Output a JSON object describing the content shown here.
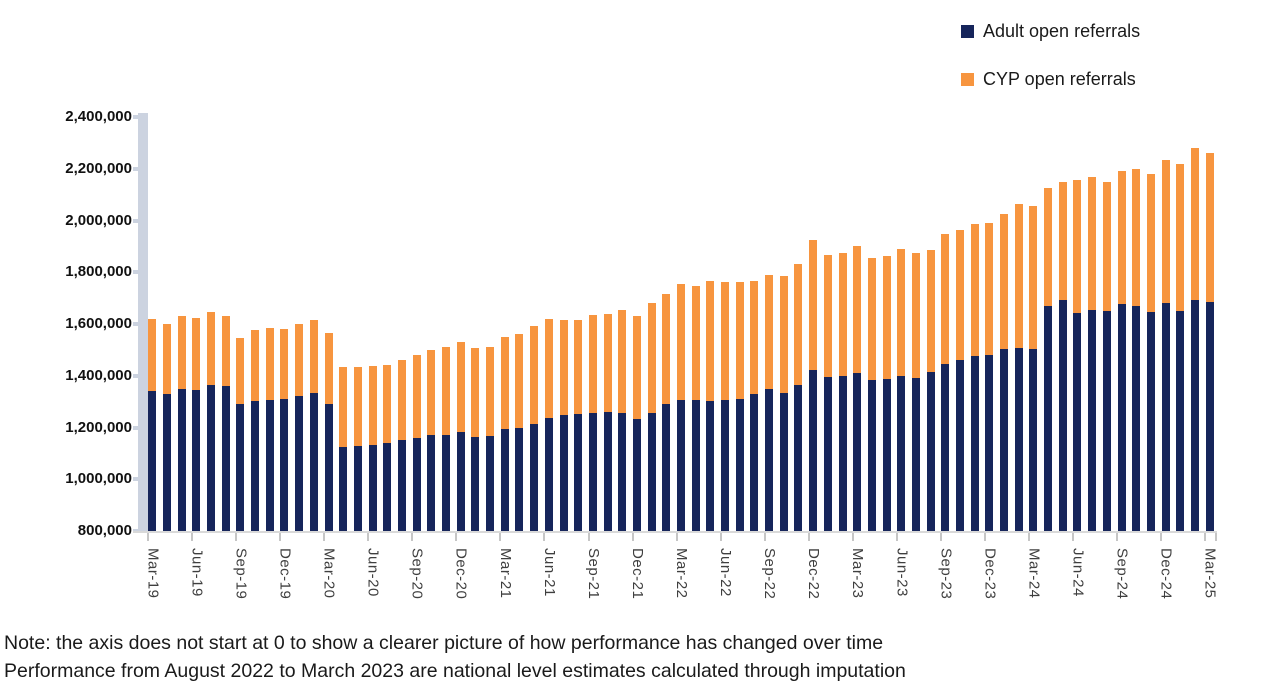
{
  "legend": [
    {
      "label": "Adult open referrals",
      "color": "#16255b"
    },
    {
      "label": "CYP open referrals",
      "color": "#f7953f"
    }
  ],
  "note": {
    "line1": "Note: the axis does not start at 0 to show a clearer picture of how performance has changed over time",
    "line2": "Performance from August 2022 to March 2023 are national level estimates calculated through imputation"
  },
  "chart_data": {
    "type": "bar",
    "stacked": true,
    "title": "",
    "xlabel": "",
    "ylabel": "",
    "grid": false,
    "legend_position": "top-right",
    "ylim": [
      800000,
      2400000
    ],
    "y_tick_step": 200000,
    "y_tick_labels": [
      "2,400,000",
      "2,200,000",
      "2,000,000",
      "1,800,000",
      "1,600,000",
      "1,400,000",
      "1,200,000",
      "1,000,000",
      "800,000"
    ],
    "x_label_every": 3,
    "x_tick_labels": [
      "Mar-19",
      "Jun-19",
      "Sep-19",
      "Dec-19",
      "Mar-20",
      "Jun-20",
      "Sep-20",
      "Dec-20",
      "Mar-21",
      "Jun-21",
      "Sep-21",
      "Dec-21",
      "Mar-22",
      "Jun-22",
      "Sep-22",
      "Dec-22",
      "Mar-23",
      "Jun-23",
      "Sep-23",
      "Dec-23",
      "Mar-24",
      "Jun-24",
      "Sep-24",
      "Dec-24",
      "Mar-25"
    ],
    "categories": [
      "Mar-19",
      "Apr-19",
      "May-19",
      "Jun-19",
      "Jul-19",
      "Aug-19",
      "Sep-19",
      "Oct-19",
      "Nov-19",
      "Dec-19",
      "Jan-20",
      "Feb-20",
      "Mar-20",
      "Apr-20",
      "May-20",
      "Jun-20",
      "Jul-20",
      "Aug-20",
      "Sep-20",
      "Oct-20",
      "Nov-20",
      "Dec-20",
      "Jan-21",
      "Feb-21",
      "Mar-21",
      "Apr-21",
      "May-21",
      "Jun-21",
      "Jul-21",
      "Aug-21",
      "Sep-21",
      "Oct-21",
      "Nov-21",
      "Dec-21",
      "Jan-22",
      "Feb-22",
      "Mar-22",
      "Apr-22",
      "May-22",
      "Jun-22",
      "Jul-22",
      "Aug-22",
      "Sep-22",
      "Oct-22",
      "Nov-22",
      "Dec-22",
      "Jan-23",
      "Feb-23",
      "Mar-23",
      "Apr-23",
      "May-23",
      "Jun-23",
      "Jul-23",
      "Aug-23",
      "Sep-23",
      "Oct-23",
      "Nov-23",
      "Dec-23",
      "Jan-24",
      "Feb-24",
      "Mar-24",
      "Apr-24",
      "May-24",
      "Jun-24",
      "Jul-24",
      "Aug-24",
      "Sep-24",
      "Oct-24",
      "Nov-24",
      "Dec-24",
      "Jan-25",
      "Feb-25",
      "Mar-25"
    ],
    "series": [
      {
        "name": "Adult open referrals",
        "color": "#16255b",
        "values": [
          1340000,
          1330000,
          1348000,
          1345000,
          1365000,
          1362000,
          1290000,
          1304000,
          1308000,
          1310000,
          1323000,
          1333000,
          1290000,
          1126000,
          1128000,
          1132000,
          1142000,
          1152000,
          1161000,
          1171000,
          1172000,
          1182000,
          1163000,
          1167000,
          1193000,
          1200000,
          1214000,
          1236000,
          1247000,
          1252000,
          1256000,
          1261000,
          1258000,
          1234000,
          1258000,
          1291000,
          1305000,
          1306000,
          1301000,
          1307000,
          1311000,
          1330000,
          1349000,
          1335000,
          1363000,
          1424000,
          1395000,
          1399000,
          1411000,
          1384000,
          1389000,
          1399000,
          1391000,
          1414000,
          1446000,
          1462000,
          1476000,
          1480000,
          1504000,
          1508000,
          1503000,
          1670000,
          1694000,
          1641000,
          1654000,
          1651000,
          1676000,
          1670000,
          1648000,
          1682000,
          1652000,
          1693000,
          1686000
        ]
      },
      {
        "name": "CYP open referrals",
        "color": "#f7953f",
        "values": [
          280000,
          270000,
          282000,
          280000,
          280000,
          268000,
          255000,
          271000,
          277000,
          270000,
          277000,
          282000,
          275000,
          309000,
          307000,
          305000,
          301000,
          308000,
          319000,
          329000,
          338000,
          348000,
          344000,
          346000,
          357000,
          362000,
          380000,
          385000,
          370000,
          363000,
          379000,
          378000,
          396000,
          396000,
          423000,
          425000,
          451000,
          441000,
          467000,
          456000,
          452000,
          438000,
          441000,
          452000,
          468000,
          501000,
          472000,
          475000,
          491000,
          473000,
          474000,
          490000,
          484000,
          471000,
          503000,
          500000,
          509000,
          512000,
          523000,
          557000,
          552000,
          456000,
          453000,
          514000,
          514000,
          499000,
          516000,
          531000,
          530000,
          550000,
          566000,
          587000,
          574000
        ]
      }
    ]
  }
}
